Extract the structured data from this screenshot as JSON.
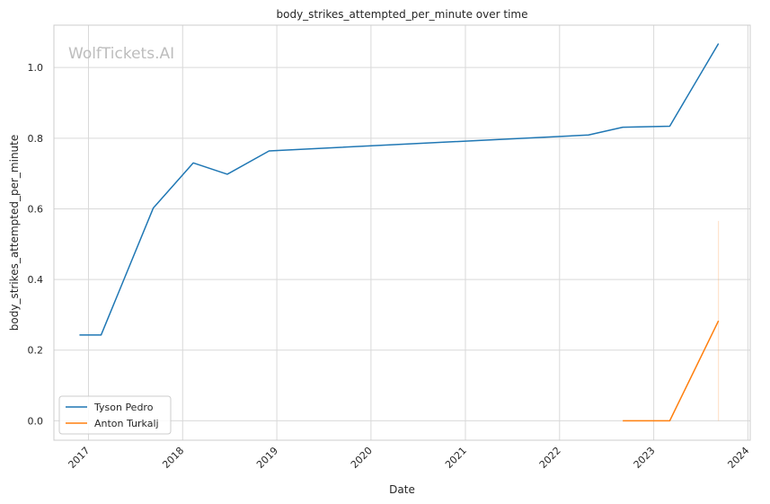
{
  "chart_data": {
    "type": "line",
    "title": "body_strikes_attempted_per_minute over time",
    "xlabel": "Date",
    "ylabel": "body_strikes_attempted_per_minute",
    "watermark": "WolfTickets.AI",
    "x_ticks": [
      "2017",
      "2018",
      "2019",
      "2020",
      "2021",
      "2022",
      "2023",
      "2024"
    ],
    "y_ticks": [
      "0.0",
      "0.2",
      "0.4",
      "0.6",
      "0.8",
      "1.0"
    ],
    "xlim": [
      "2016-08-20",
      "2024-01-10"
    ],
    "ylim": [
      -0.055,
      1.12
    ],
    "grid": true,
    "legend_position": "lower-left",
    "series": [
      {
        "name": "Tyson Pedro",
        "color": "#1f77b4",
        "points": [
          [
            "2016-11-27",
            0.243
          ],
          [
            "2017-02-19",
            0.243
          ],
          [
            "2017-09-09",
            0.602
          ],
          [
            "2018-02-11",
            0.73
          ],
          [
            "2018-06-23",
            0.698
          ],
          [
            "2018-12-02",
            0.764
          ],
          [
            "2022-04-23",
            0.809
          ],
          [
            "2022-09-03",
            0.831
          ],
          [
            "2023-03-04",
            0.834
          ],
          [
            "2023-09-09",
            1.068
          ]
        ]
      },
      {
        "name": "Anton Turkalj",
        "color": "#ff7f0e",
        "points": [
          [
            "2022-09-03",
            0.0
          ],
          [
            "2023-03-04",
            0.0
          ],
          [
            "2023-09-09",
            0.283
          ]
        ],
        "band": {
          "x": "2023-09-09",
          "low": 0.0,
          "high": 0.566
        }
      }
    ]
  }
}
